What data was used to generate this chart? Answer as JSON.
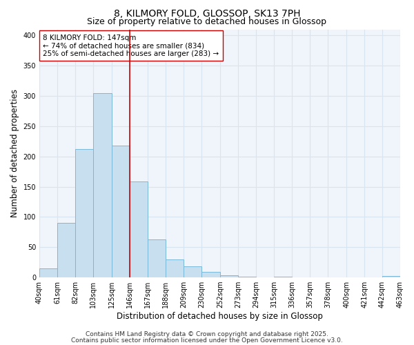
{
  "title": "8, KILMORY FOLD, GLOSSOP, SK13 7PH",
  "subtitle": "Size of property relative to detached houses in Glossop",
  "xlabel": "Distribution of detached houses by size in Glossop",
  "ylabel": "Number of detached properties",
  "bar_color": "#c8dff0",
  "bar_edge_color": "#7ab8d8",
  "background_color": "#ffffff",
  "plot_bg_color": "#f0f4fb",
  "grid_color": "#d8e4f0",
  "vline_color": "#cc0000",
  "vline_x": 146,
  "bins": [
    40,
    61,
    82,
    103,
    125,
    146,
    167,
    188,
    209,
    230,
    252,
    273,
    294,
    315,
    336,
    357,
    378,
    400,
    421,
    442,
    463
  ],
  "heights": [
    15,
    90,
    212,
    305,
    218,
    159,
    63,
    30,
    18,
    9,
    3,
    1,
    0,
    1,
    0,
    0,
    0,
    0,
    0,
    2
  ],
  "ylim": [
    0,
    410
  ],
  "yticks": [
    0,
    50,
    100,
    150,
    200,
    250,
    300,
    350,
    400
  ],
  "annotation_line1": "8 KILMORY FOLD: 147sqm",
  "annotation_line2": "← 74% of detached houses are smaller (834)",
  "annotation_line3": "25% of semi-detached houses are larger (283) →",
  "annotation_box_color": "#ffffff",
  "annotation_box_edge": "#cc0000",
  "footer1": "Contains HM Land Registry data © Crown copyright and database right 2025.",
  "footer2": "Contains public sector information licensed under the Open Government Licence v3.0.",
  "title_fontsize": 10,
  "subtitle_fontsize": 9,
  "annotation_fontsize": 7.5,
  "tick_label_fontsize": 7,
  "axis_label_fontsize": 8.5,
  "footer_fontsize": 6.5
}
